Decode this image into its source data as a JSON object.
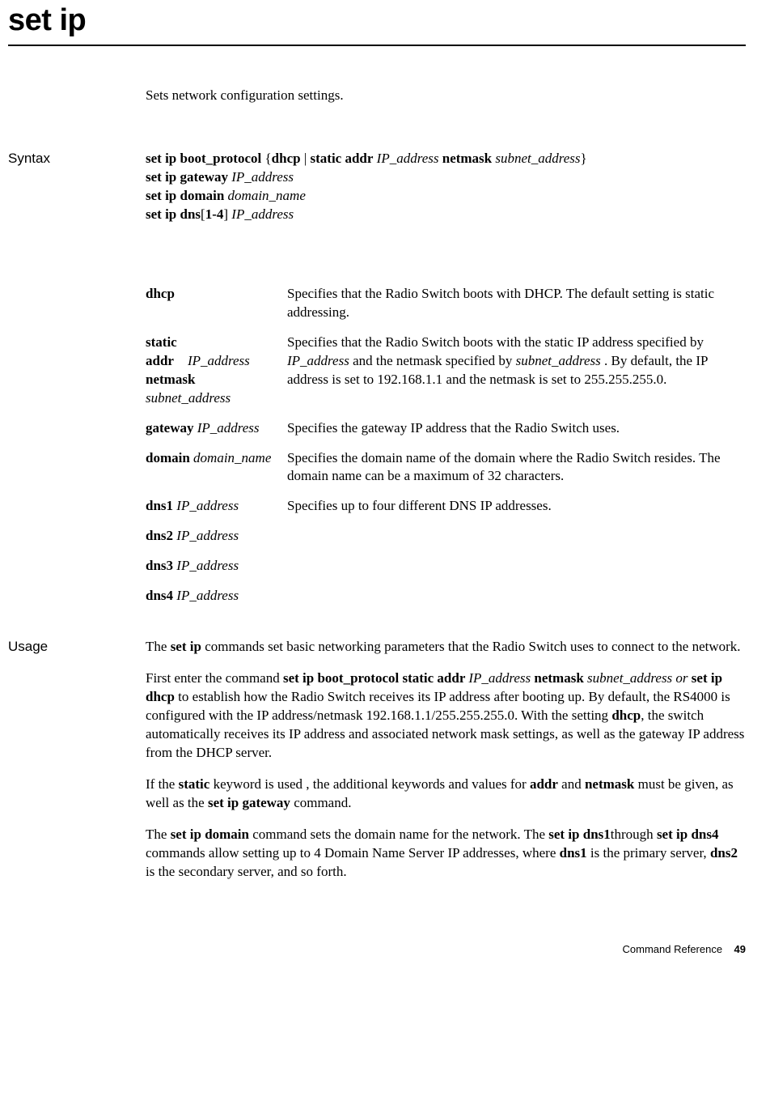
{
  "title": "set ip",
  "intro": "Sets network configuration settings.",
  "labels": {
    "syntax": "Syntax",
    "usage": "Usage"
  },
  "syntax": {
    "l1": {
      "a": "set ip boot_protocol",
      "b": "dhcp",
      "c": "static addr",
      "d": "IP_address",
      "e": "netmask",
      "f": "subnet_address"
    },
    "l2": {
      "a": "set ip gateway",
      "b": "IP_address"
    },
    "l3": {
      "a": "set ip domain",
      "b": "domain_name"
    },
    "l4": {
      "a": "set ip dns",
      "b": "1-4",
      "c": "IP_address"
    }
  },
  "params": {
    "dhcp": {
      "term": "dhcp",
      "desc": "Specifies that the Radio Switch boots with DHCP. The default setting is static addressing."
    },
    "static": {
      "t1": "static addr",
      "t2": "IP_address",
      "t3": "netmask",
      "t4": "subnet_address",
      "d1": "Specifies that the Radio Switch boots with the static IP address specified by ",
      "d2": "IP_address",
      "d3": " and the netmask specified by ",
      "d4": "subnet_address",
      "d5": " . By default, the IP address is set to 192.168.1.1 and the netmask is set to 255.255.255.0."
    },
    "gateway": {
      "t1": "gateway",
      "t2": "IP_address",
      "desc": "Specifies the gateway IP address that the Radio Switch uses."
    },
    "domain": {
      "t1": "domain",
      "t2": "domain_name",
      "desc": "Specifies the domain name of the domain where the Radio Switch resides. The domain name can be a maximum of 32 characters."
    },
    "dns1": {
      "t1": "dns1",
      "t2": "IP_address",
      "desc": "Specifies up to four different DNS IP addresses."
    },
    "dns2": {
      "t1": "dns2",
      "t2": "IP_address"
    },
    "dns3": {
      "t1": "dns3",
      "t2": "IP_address"
    },
    "dns4": {
      "t1": "dns4",
      "t2": "IP_address"
    }
  },
  "usage": {
    "p1": {
      "a": "The ",
      "b": "set ip",
      "c": " commands set basic networking parameters that the Radio Switch uses to connect to the network."
    },
    "p2": {
      "a": "First enter the command ",
      "b": "set ip boot_protocol static addr ",
      "c": "IP_address",
      "d": " netmask",
      "e": " subnet_address or ",
      "f": "set ip dhcp",
      "g": " to establish how the Radio Switch receives its IP address after booting up. By default, the RS4000 is configured with the IP address/netmask 192.168.1.1/255.255.255.0. With the setting ",
      "h": "dhcp",
      "i": ", the switch automatically receives its IP address and associated network mask settings, as well as the gateway IP address from the DHCP server."
    },
    "p3": {
      "a": "If the ",
      "b": "static",
      "c": " keyword is used , the additional keywords and values for ",
      "d": "addr",
      "e": " and ",
      "f": "netmask",
      "g": " must be given, as well as the ",
      "h": "set ip gateway",
      "i": " command."
    },
    "p4": {
      "a": "The ",
      "b": "set ip domain",
      "c": " command sets the domain name for the network. The ",
      "d": "set ip dns1",
      "e": "through ",
      "f": "set ip dns4",
      "g": " commands allow setting up to 4 Domain Name Server IP addresses, where ",
      "h": "dns1",
      "i": " is the primary server, ",
      "j": "dns2",
      "k": " is the secondary server, and so forth."
    }
  },
  "footer": {
    "ref": "Command Reference",
    "page": "49"
  }
}
